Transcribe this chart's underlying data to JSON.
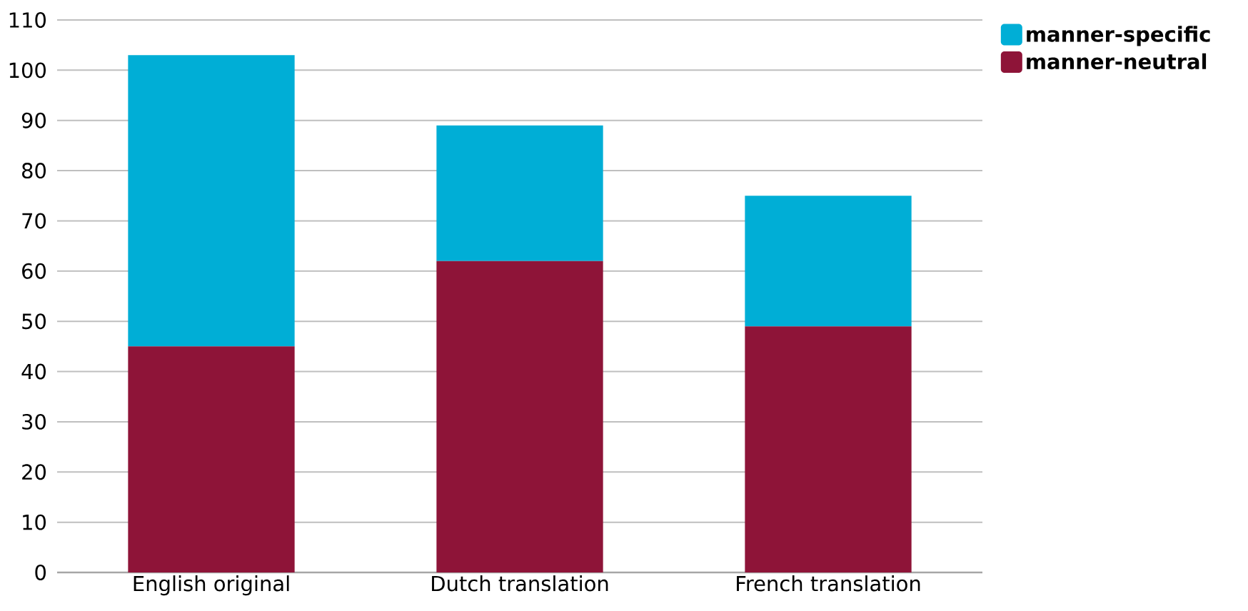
{
  "chart_data": {
    "type": "bar",
    "stacked": true,
    "categories": [
      "English original",
      "Dutch translation",
      "French translation"
    ],
    "series": [
      {
        "name": "manner-neutral",
        "color": "#8e1438",
        "values": [
          45,
          62,
          49
        ]
      },
      {
        "name": "manner-specific",
        "color": "#00aed6",
        "values": [
          58,
          27,
          26
        ]
      }
    ],
    "ylim": [
      0,
      110
    ],
    "yticks": [
      0,
      10,
      20,
      30,
      40,
      50,
      60,
      70,
      80,
      90,
      100,
      110
    ],
    "grid": "y",
    "legend": "top right"
  }
}
